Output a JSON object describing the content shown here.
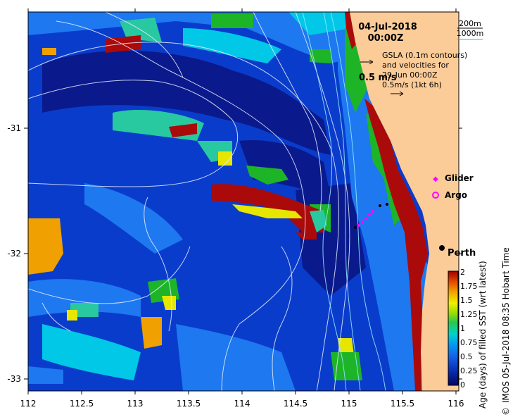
{
  "map": {
    "date": "04-Jul-2018",
    "time": "00:00Z",
    "scale_bar_1": "200m",
    "scale_bar_2": "1000m",
    "gsla_line_1": "GSLA (0.1m contours)",
    "gsla_line_2": "and velocities for",
    "gsla_line_3": "29-Jun 00:00Z",
    "velocity_label_big": "0.5 m/s",
    "velocity_label_small": "0.5m/s (1kt 6h)",
    "place_name": "Perth",
    "legend": [
      {
        "label": "Glider",
        "color": "#ff00ff"
      },
      {
        "label": "Argo",
        "color": "#ff00ff"
      }
    ],
    "x_ticks": [
      "112",
      "112.5",
      "113",
      "113.5",
      "114",
      "114.5",
      "115",
      "115.5",
      "116"
    ],
    "y_ticks": [
      "-31",
      "-32",
      "-33"
    ],
    "colorbar": {
      "title": "Age (days) of filled SST (wrt latest)",
      "ticks": [
        "2",
        "1.75",
        "1.5",
        "1.25",
        "1",
        "0.75",
        "0.5",
        "0.25",
        "0"
      ]
    },
    "credit": "IMOS 05-Jul-2018 08:35 Hobart Time",
    "copyright": "©",
    "colors": {
      "land": "#fccc98",
      "deep_blue": "#0a1a8c",
      "mid_blue": "#0a3ccc",
      "light_blue": "#1e78f0",
      "cyan": "#00c8e6",
      "teal": "#28c8a0",
      "green": "#1eb428",
      "yellow": "#e6e600",
      "orange": "#f0a000",
      "red": "#aa0a0a"
    }
  }
}
